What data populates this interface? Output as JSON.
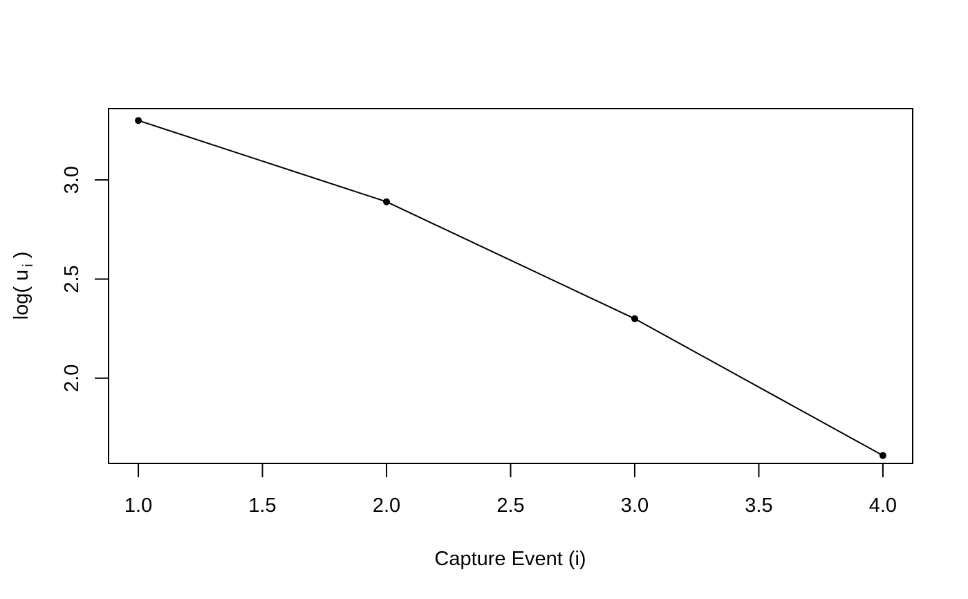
{
  "chart_data": {
    "type": "line",
    "x": [
      1,
      2,
      3,
      4
    ],
    "series": [
      {
        "values": [
          3.3,
          2.89,
          2.3,
          1.61
        ],
        "color": "#000000",
        "marker": "filled-circle"
      }
    ],
    "xlabel": "Capture Event (i)",
    "ylabel": {
      "prefix": "log( u",
      "subscript": "i",
      "suffix": " )"
    },
    "xlim": [
      0.88,
      4.12
    ],
    "ylim": [
      1.57,
      3.36
    ],
    "x_ticks": [
      1.0,
      1.5,
      2.0,
      2.5,
      3.0,
      3.5,
      4.0
    ],
    "x_tick_labels": [
      "1.0",
      "1.5",
      "2.0",
      "2.5",
      "3.0",
      "3.5",
      "4.0"
    ],
    "y_ticks": [
      2.0,
      2.5,
      3.0
    ],
    "y_tick_labels": [
      "2.0",
      "2.5",
      "3.0"
    ],
    "grid": false,
    "legend": "none",
    "box": true
  }
}
